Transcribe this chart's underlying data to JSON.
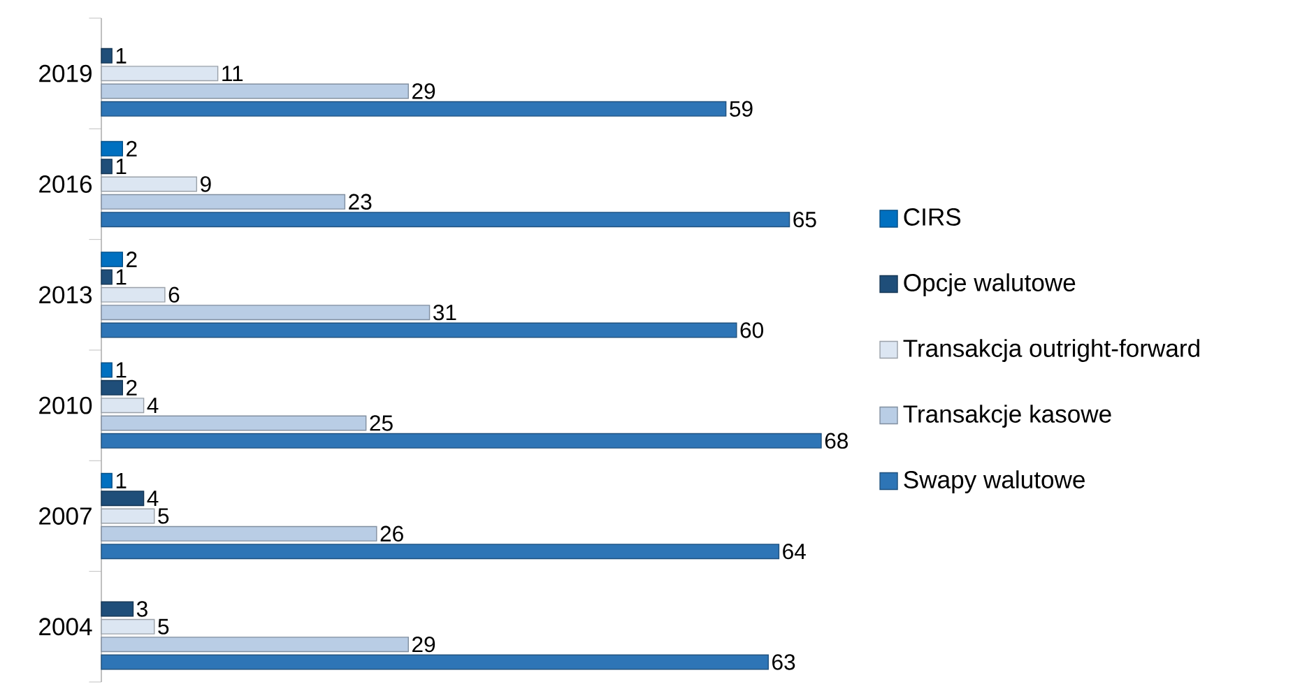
{
  "chart_data": {
    "type": "bar",
    "orientation": "horizontal",
    "categories": [
      "2019",
      "2016",
      "2013",
      "2010",
      "2007",
      "2004"
    ],
    "series": [
      {
        "name": "CIRS",
        "color": "#0070c0",
        "values": [
          null,
          2,
          2,
          1,
          1,
          null
        ]
      },
      {
        "name": "Opcje walutowe",
        "color": "#1f4e79",
        "values": [
          1,
          1,
          1,
          2,
          4,
          3
        ]
      },
      {
        "name": "Transakcja outright-forward",
        "color": "#dce6f2",
        "values": [
          11,
          9,
          6,
          4,
          5,
          5
        ]
      },
      {
        "name": "Transakcje kasowe",
        "color": "#b9cde5",
        "values": [
          29,
          23,
          31,
          25,
          26,
          29
        ]
      },
      {
        "name": "Swapy walutowe",
        "color": "#2e75b6",
        "values": [
          59,
          65,
          60,
          68,
          64,
          63
        ]
      }
    ],
    "data_labels": true,
    "legend": "right"
  }
}
